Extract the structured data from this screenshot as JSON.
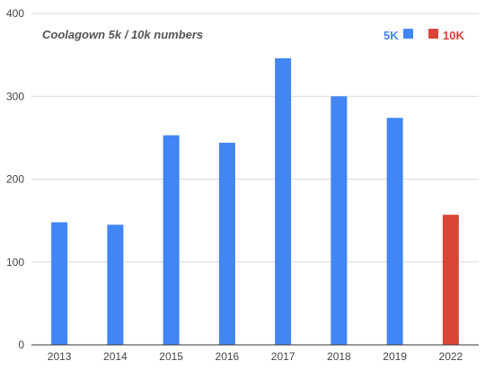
{
  "chart_data": {
    "type": "bar",
    "title": "Coolagown 5k / 10k numbers",
    "xlabel": "",
    "ylabel": "",
    "categories": [
      "2013",
      "2014",
      "2015",
      "2016",
      "2017",
      "2018",
      "2019",
      "2022"
    ],
    "series": [
      {
        "name": "5K",
        "color": "#4285f4",
        "values": [
          148,
          145,
          253,
          244,
          346,
          300,
          274,
          null
        ]
      },
      {
        "name": "10K",
        "color": "#db4437",
        "values": [
          null,
          null,
          null,
          null,
          null,
          null,
          null,
          157
        ]
      }
    ],
    "ylim": [
      0,
      400
    ],
    "yticks": [
      "0",
      "100",
      "200",
      "300",
      "400"
    ],
    "grid": true,
    "legend_position": "top-right"
  }
}
